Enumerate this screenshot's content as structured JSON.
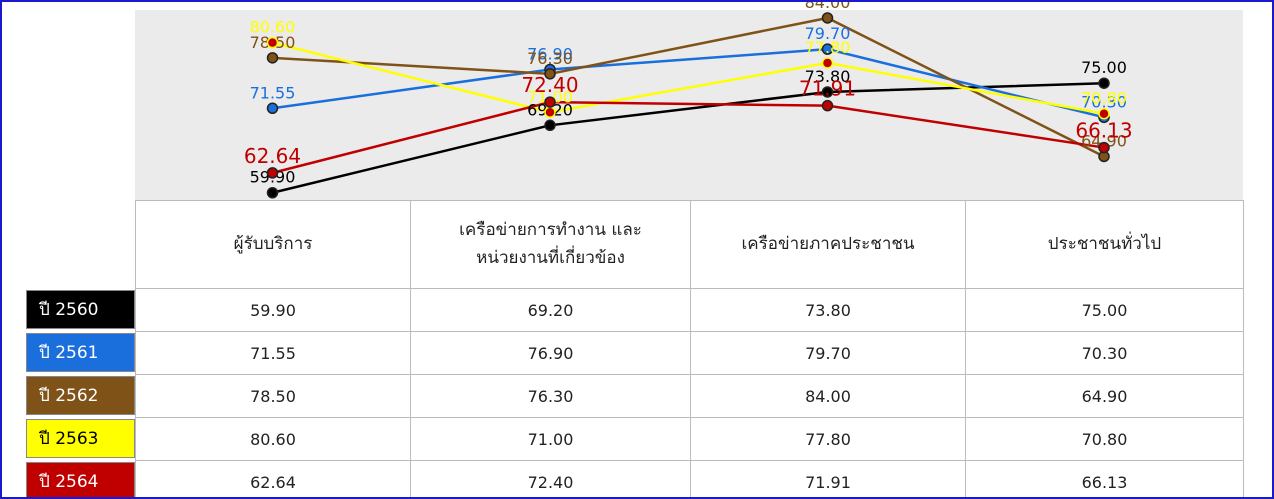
{
  "chart_data": {
    "type": "line",
    "categories": [
      "ผู้รับบริการ",
      "เครือข่ายการทำงาน และ หน่วยงานที่เกี่ยวข้อง",
      "เครือข่ายภาคประชาชน",
      "ประชาชนทั่วไป"
    ],
    "ylim": [
      58.9,
      85.1
    ],
    "series": [
      {
        "name": "ปี 2560",
        "color": "#000000",
        "text_color": "#ffffff",
        "values": [
          59.9,
          69.2,
          73.8,
          75.0
        ],
        "value_labels": [
          "59.90",
          "69.20",
          "73.80",
          "75.00"
        ]
      },
      {
        "name": "ปี 2561",
        "color": "#1a6fdc",
        "text_color": "#ffffff",
        "values": [
          71.55,
          76.9,
          79.7,
          70.3
        ],
        "value_labels": [
          "71.55",
          "76.90",
          "79.70",
          "70.30"
        ]
      },
      {
        "name": "ปี 2562",
        "color": "#7f5217",
        "text_color": "#ffffff",
        "values": [
          78.5,
          76.3,
          84.0,
          64.9
        ],
        "value_labels": [
          "78.50",
          "76.30",
          "84.00",
          "64.90"
        ]
      },
      {
        "name": "ปี 2563",
        "color": "#ffff00",
        "text_color": "#000000",
        "values": [
          80.6,
          71.0,
          77.8,
          70.8
        ],
        "value_labels": [
          "80.60",
          "71.00",
          "77.80",
          "70.80"
        ]
      },
      {
        "name": "ปี 2564",
        "color": "#c00000",
        "text_color": "#ffffff",
        "values": [
          62.64,
          72.4,
          71.91,
          66.13
        ],
        "value_labels": [
          "62.64",
          "72.40",
          "71.91",
          "66.13"
        ]
      }
    ]
  }
}
